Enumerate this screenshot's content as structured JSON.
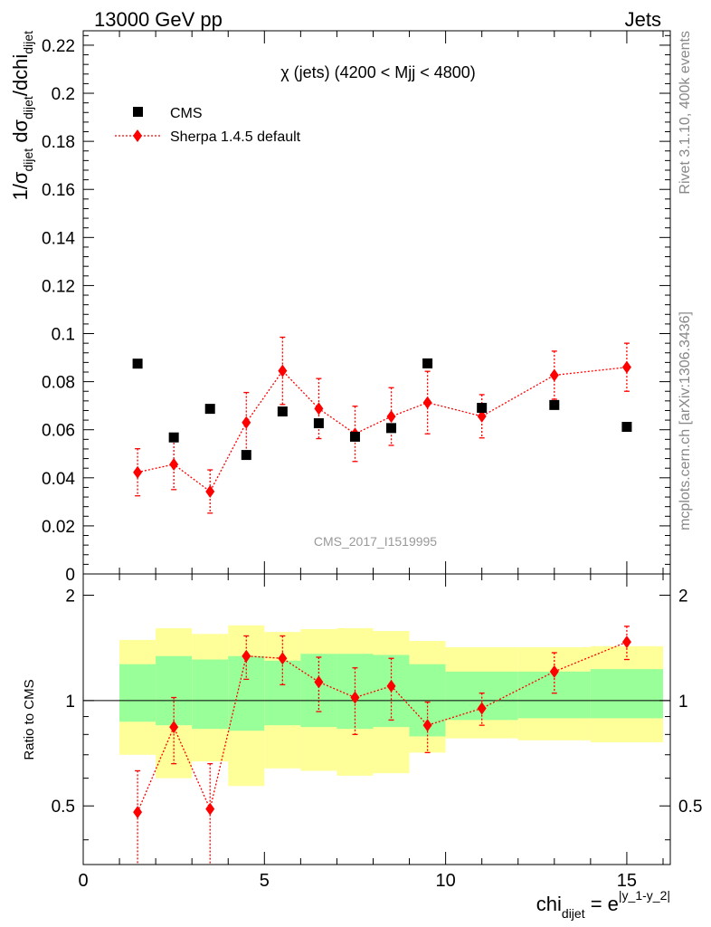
{
  "header": {
    "left": "13000 GeV pp",
    "right": "Jets"
  },
  "side_text": {
    "rivet": "Rivet 3.1.10,  400k events",
    "mcplots": "mcplots.cern.ch [arXiv:1306.3436]"
  },
  "colors": {
    "cms": "#000000",
    "sherpa": "#ff0000",
    "band_inner": "#99ff99",
    "band_outer": "#ffff99"
  },
  "chart_data": [
    {
      "type": "scatter",
      "title": "χ (jets) (4200 < Mjj < 4800)",
      "analysis_id": "CMS_2017_I1519995",
      "ylabel": {
        "prefix": "1/σ",
        "sub1": "dijet",
        "mid": " dσ",
        "sub2": "dijet",
        "suffix": "/dchi",
        "sub3": "dijet"
      },
      "xlim": [
        0,
        16.2
      ],
      "ylim": [
        0,
        0.226
      ],
      "yticks": [
        0,
        0.02,
        0.04,
        0.06,
        0.08,
        0.1,
        0.12,
        0.14,
        0.16,
        0.18,
        0.2,
        0.22
      ],
      "ytick_labels": [
        "0",
        "0.02",
        "0.04",
        "0.06",
        "0.08",
        "0.1",
        "0.12",
        "0.14",
        "0.16",
        "0.18",
        "0.2",
        "0.22"
      ],
      "legend": [
        {
          "name": "CMS",
          "marker": "square"
        },
        {
          "name": "Sherpa 1.4.5 default",
          "marker": "diamond"
        }
      ],
      "series": [
        {
          "name": "CMS",
          "x": [
            1.5,
            2.5,
            3.5,
            4.5,
            5.5,
            6.5,
            7.5,
            8.5,
            9.5,
            11,
            13,
            15
          ],
          "y": [
            0.0875,
            0.0568,
            0.0687,
            0.0495,
            0.0676,
            0.0627,
            0.0571,
            0.0607,
            0.0876,
            0.0691,
            0.0703,
            0.0612
          ]
        },
        {
          "name": "Sherpa 1.4.5 default",
          "x": [
            1.5,
            2.5,
            3.5,
            4.5,
            5.5,
            6.5,
            7.5,
            8.5,
            9.5,
            11,
            13,
            15
          ],
          "y": [
            0.0423,
            0.0456,
            0.0343,
            0.063,
            0.0845,
            0.0688,
            0.0583,
            0.0655,
            0.0713,
            0.0656,
            0.0827,
            0.086
          ],
          "yerr": [
            0.0098,
            0.0105,
            0.009,
            0.0125,
            0.014,
            0.0125,
            0.0115,
            0.012,
            0.013,
            0.009,
            0.01,
            0.01
          ]
        }
      ]
    },
    {
      "type": "scatter",
      "ylabel": "Ratio to CMS",
      "xlabel": {
        "base": "chi",
        "sub": "dijet",
        "eq": " = e",
        "sup": "|y_1-y_2|"
      },
      "xlim": [
        0,
        16.2
      ],
      "ylim": [
        0.34,
        2.3
      ],
      "xticks": [
        0,
        5,
        10,
        15
      ],
      "xtick_labels": [
        "0",
        "5",
        "10",
        "15"
      ],
      "yticks": [
        0.5,
        1,
        2
      ],
      "ytick_labels": [
        "0.5",
        "1",
        "2"
      ],
      "reference_line": 1,
      "bands": {
        "edges": [
          1,
          2,
          3,
          4,
          5,
          6,
          7,
          8,
          9,
          10,
          12,
          14,
          16
        ],
        "inner_low": [
          0.87,
          0.85,
          0.83,
          0.82,
          0.85,
          0.84,
          0.83,
          0.84,
          0.79,
          0.88,
          0.89,
          0.89
        ],
        "inner_high": [
          1.27,
          1.34,
          1.31,
          1.34,
          1.3,
          1.36,
          1.36,
          1.35,
          1.27,
          1.21,
          1.21,
          1.23
        ],
        "outer_low": [
          0.7,
          0.6,
          0.67,
          0.57,
          0.64,
          0.63,
          0.61,
          0.62,
          0.71,
          0.78,
          0.77,
          0.76
        ],
        "outer_high": [
          1.49,
          1.61,
          1.55,
          1.64,
          1.57,
          1.6,
          1.61,
          1.58,
          1.48,
          1.42,
          1.42,
          1.43
        ]
      },
      "series": [
        {
          "name": "Sherpa 1.4.5 default",
          "x": [
            1.5,
            2.5,
            3.5,
            4.5,
            5.5,
            6.5,
            7.5,
            8.5,
            9.5,
            11,
            13,
            15
          ],
          "y": [
            0.48,
            0.84,
            0.49,
            1.34,
            1.32,
            1.13,
            1.02,
            1.1,
            0.85,
            0.95,
            1.21,
            1.47
          ],
          "yerr": [
            0.15,
            0.18,
            0.17,
            0.19,
            0.21,
            0.2,
            0.22,
            0.22,
            0.14,
            0.1,
            0.16,
            0.16
          ]
        }
      ]
    }
  ]
}
